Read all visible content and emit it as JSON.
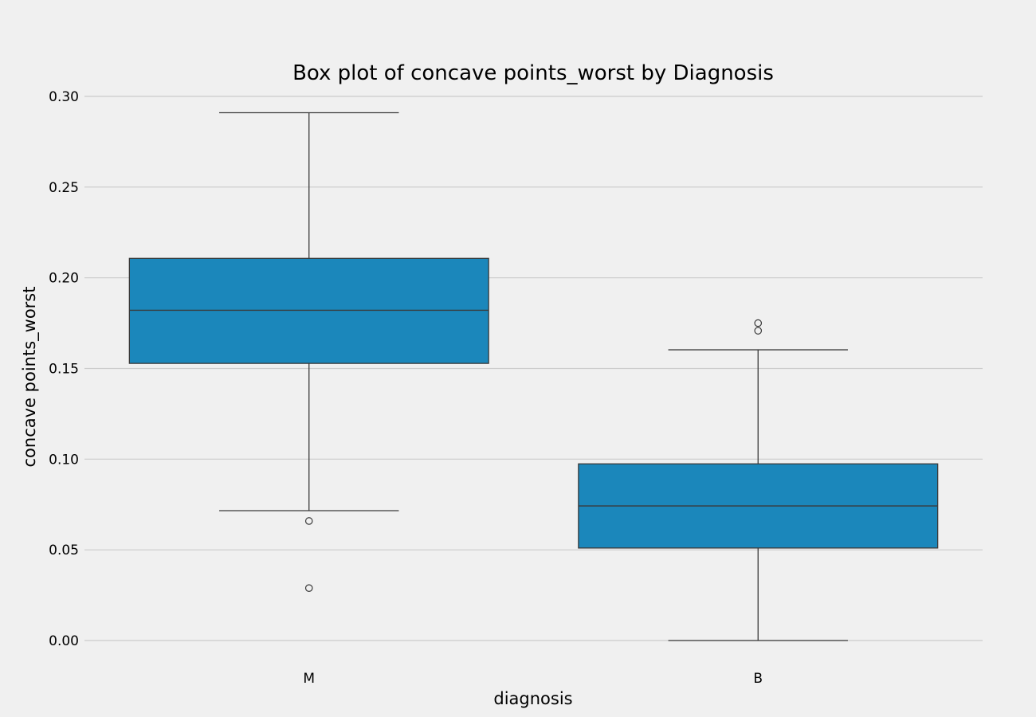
{
  "chart_data": {
    "type": "box",
    "title": "Box plot of concave points_worst by Diagnosis",
    "xlabel": "diagnosis",
    "ylabel": "concave points_worst",
    "categories": [
      "M",
      "B"
    ],
    "ylim": [
      0.0,
      0.3
    ],
    "yticks": [
      0.0,
      0.05,
      0.1,
      0.15,
      0.2,
      0.25,
      0.3
    ],
    "ytick_labels": [
      "0.00",
      "0.05",
      "0.10",
      "0.15",
      "0.20",
      "0.25",
      "0.30"
    ],
    "grid": true,
    "box_color": "#1b87bb",
    "line_color": "#3a3a3a",
    "background": "#f0f0f0",
    "boxes": [
      {
        "category": "M",
        "whisker_low": 0.0716,
        "q1": 0.1528,
        "median": 0.1821,
        "q3": 0.2107,
        "whisker_high": 0.291,
        "outliers": [
          0.0659,
          0.0289
        ]
      },
      {
        "category": "B",
        "whisker_low": 0.0,
        "q1": 0.051,
        "median": 0.0742,
        "q3": 0.0974,
        "whisker_high": 0.1603,
        "outliers": [
          0.1708,
          0.175
        ]
      }
    ]
  }
}
